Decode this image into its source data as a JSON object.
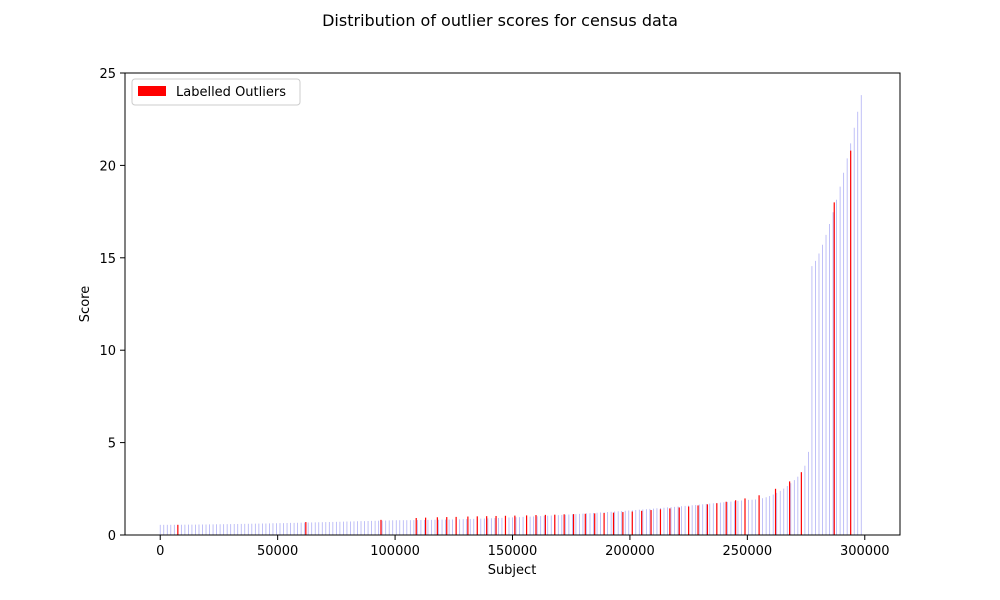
{
  "chart_data": {
    "type": "bar",
    "title": "Distribution of outlier scores for census data",
    "xlabel": "Subject",
    "ylabel": "Score",
    "xlim": [
      -15000,
      315000
    ],
    "ylim": [
      0,
      25
    ],
    "xticks": [
      0,
      50000,
      100000,
      150000,
      200000,
      250000,
      300000
    ],
    "yticks": [
      0,
      5,
      10,
      15,
      20,
      25
    ],
    "grid": false,
    "legend": {
      "position": "top-left",
      "entries": [
        {
          "label": "Labelled Outliers",
          "color": "#ff0000"
        }
      ]
    },
    "colors": {
      "bars": "#b0b0f5",
      "outliers": "#ff0000"
    },
    "series": [
      {
        "name": "Labelled Outliers",
        "points": [
          [
            7500,
            0.55
          ],
          [
            62000,
            0.7
          ],
          [
            94000,
            0.82
          ],
          [
            109000,
            0.92
          ],
          [
            113000,
            0.94
          ],
          [
            118000,
            0.96
          ],
          [
            122000,
            0.97
          ],
          [
            126000,
            0.98
          ],
          [
            131000,
            1.0
          ],
          [
            135000,
            1.01
          ],
          [
            139000,
            1.02
          ],
          [
            143000,
            1.03
          ],
          [
            147000,
            1.04
          ],
          [
            151000,
            1.05
          ],
          [
            156000,
            1.06
          ],
          [
            160000,
            1.08
          ],
          [
            164000,
            1.09
          ],
          [
            168000,
            1.1
          ],
          [
            172000,
            1.12
          ],
          [
            176000,
            1.13
          ],
          [
            181000,
            1.15
          ],
          [
            185000,
            1.17
          ],
          [
            189000,
            1.19
          ],
          [
            193000,
            1.21
          ],
          [
            197000,
            1.24
          ],
          [
            201000,
            1.27
          ],
          [
            205000,
            1.31
          ],
          [
            209000,
            1.35
          ],
          [
            213000,
            1.39
          ],
          [
            217000,
            1.44
          ],
          [
            221000,
            1.49
          ],
          [
            225000,
            1.54
          ],
          [
            229000,
            1.6
          ],
          [
            233000,
            1.66
          ],
          [
            237000,
            1.72
          ],
          [
            241000,
            1.8
          ],
          [
            245000,
            1.88
          ],
          [
            249000,
            1.98
          ],
          [
            255000,
            2.15
          ],
          [
            262000,
            2.5
          ],
          [
            268000,
            2.9
          ],
          [
            273000,
            3.4
          ],
          [
            287000,
            18.0
          ],
          [
            294000,
            20.8
          ]
        ]
      }
    ]
  }
}
